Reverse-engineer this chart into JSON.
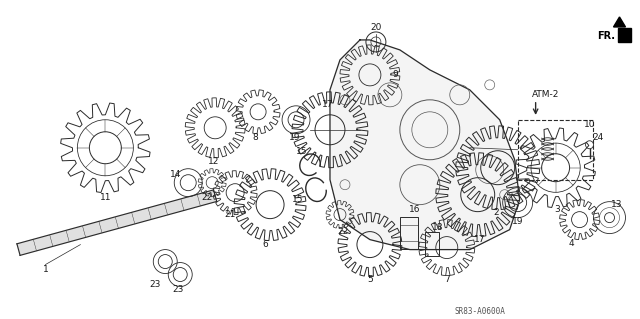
{
  "background_color": "#ffffff",
  "fr_label": "FR.",
  "atm_label": "ATM-2",
  "diagram_code": "SR83-A0600A",
  "fig_width": 6.4,
  "fig_height": 3.19,
  "dpi": 100
}
